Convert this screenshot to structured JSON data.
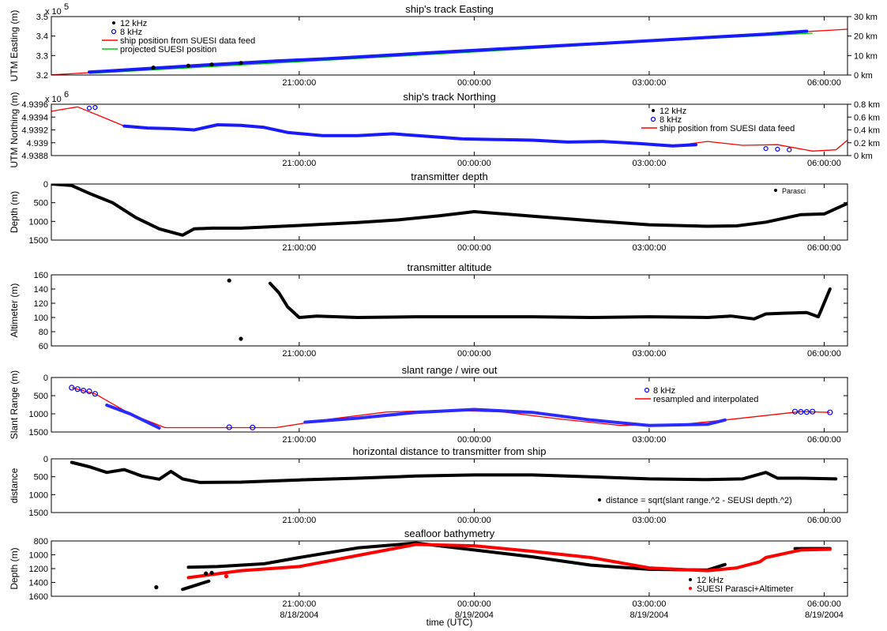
{
  "chart_data": [
    {
      "id": "easting",
      "type": "scatter",
      "title": "ship's track Easting",
      "ylabel": "UTM Easting (m)",
      "yexp": "x 10",
      "yexp_power": "5",
      "ylim": [
        3.2,
        3.5
      ],
      "yinvert": false,
      "yticks": [
        "3.2",
        "3.3",
        "3.4",
        "3.5"
      ],
      "yticks_values": [
        3.2,
        3.3,
        3.4,
        3.5
      ],
      "right_axis": {
        "ticks": [
          "0 km",
          "10 km",
          "20 km",
          "30 km"
        ],
        "values": [
          3.2,
          3.3,
          3.4,
          3.5
        ]
      },
      "xlim": [
        -4.25,
        9.4
      ],
      "xticks": [
        "21:00:00",
        "00:00:00",
        "03:00:00",
        "06:00:00"
      ],
      "xticks_values": [
        0,
        3,
        6,
        9
      ],
      "legend": {
        "placement": "top-left",
        "entries": [
          {
            "label": "12 kHz",
            "color": "#000000",
            "marker": "dot"
          },
          {
            "label": "8 kHz",
            "color": "#0000ff",
            "marker": "circle"
          },
          {
            "label": "ship position from SUESI data feed",
            "color": "#ff0000",
            "marker": "line"
          },
          {
            "label": "projected SUESI position",
            "color": "#00cc00",
            "marker": "line"
          }
        ]
      },
      "series": [
        {
          "kind": "line",
          "color": "#ff0000",
          "x": [
            -4.25,
            -2.0,
            0.0,
            3.0,
            6.0,
            9.4
          ],
          "y": [
            3.201,
            3.24,
            3.274,
            3.322,
            3.376,
            3.435
          ]
        },
        {
          "kind": "line",
          "color": "#00cc00",
          "x": [
            -3.6,
            0.0,
            3.0,
            6.0,
            8.8
          ],
          "y": [
            3.208,
            3.268,
            3.318,
            3.372,
            3.415
          ]
        },
        {
          "kind": "band",
          "color": "#1a1aff",
          "stroke": 4,
          "x": [
            -3.6,
            -2.4,
            -1.7,
            -0.4,
            0.5,
            2.4,
            3.0,
            4.6,
            5.3,
            8.0,
            8.7
          ],
          "y": [
            3.215,
            3.237,
            3.25,
            3.272,
            3.284,
            3.317,
            3.327,
            3.353,
            3.364,
            3.41,
            3.425
          ]
        },
        {
          "kind": "dots",
          "color": "#000000",
          "r": 2,
          "x": [
            -2.5,
            -1.9,
            -1.5,
            -1.0
          ],
          "y": [
            3.238,
            3.248,
            3.254,
            3.262
          ]
        }
      ]
    },
    {
      "id": "northing",
      "type": "scatter",
      "title": "ship's track Northing",
      "ylabel": "UTM Northing (m)",
      "yexp": "x 10",
      "yexp_power": "6",
      "ylim": [
        4.9388,
        4.9396
      ],
      "yinvert": false,
      "yticks": [
        "4.9388",
        "4.939",
        "4.9392",
        "4.9394",
        "4.9396"
      ],
      "yticks_values": [
        4.9388,
        4.939,
        4.9392,
        4.9394,
        4.9396
      ],
      "right_axis": {
        "ticks": [
          "0 km",
          "0.2 km",
          "0.4 km",
          "0.6 km",
          "0.8 km"
        ],
        "values": [
          4.9388,
          4.939,
          4.9392,
          4.9394,
          4.9396
        ]
      },
      "xlim": [
        -4.25,
        9.4
      ],
      "xticks": [
        "21:00:00",
        "00:00:00",
        "03:00:00",
        "06:00:00"
      ],
      "xticks_values": [
        0,
        3,
        6,
        9
      ],
      "legend": {
        "placement": "top-right",
        "entries": [
          {
            "label": "12 kHz",
            "color": "#000000",
            "marker": "dot"
          },
          {
            "label": "8 kHz",
            "color": "#0000ff",
            "marker": "circle"
          },
          {
            "label": "ship position from SUESI data feed",
            "color": "#ff0000",
            "marker": "line"
          }
        ]
      },
      "series": [
        {
          "kind": "line",
          "color": "#ff0000",
          "x": [
            -4.25,
            -3.8,
            -3.4,
            -3.0,
            -2.6,
            -2.2,
            -1.8,
            -1.4,
            -1.0,
            -0.6,
            -0.2,
            0.4,
            1.0,
            1.6,
            2.2,
            2.8,
            3.4,
            4.0,
            4.6,
            5.2,
            5.8,
            6.4,
            7.0,
            7.6,
            8.2,
            8.8,
            9.2,
            9.4
          ],
          "y": [
            4.93949,
            4.93956,
            4.93941,
            4.93926,
            4.93923,
            4.93922,
            4.9392,
            4.93928,
            4.93927,
            4.93924,
            4.93916,
            4.93911,
            4.93911,
            4.93914,
            4.9391,
            4.93906,
            4.93905,
            4.93904,
            4.93901,
            4.93902,
            4.93899,
            4.93895,
            4.93902,
            4.93896,
            4.93897,
            4.93887,
            4.93889,
            4.93904
          ]
        },
        {
          "kind": "band",
          "color": "#1a1aff",
          "stroke": 4,
          "x": [
            -3.0,
            -2.6,
            -2.2,
            -1.8,
            -1.4,
            -1.0,
            -0.6,
            -0.2,
            0.4,
            1.0,
            1.6,
            2.2,
            2.8,
            3.4,
            4.0,
            4.6,
            5.2,
            5.8,
            6.4,
            6.8
          ],
          "y": [
            4.93926,
            4.93923,
            4.93922,
            4.9392,
            4.93928,
            4.93927,
            4.93924,
            4.93916,
            4.93911,
            4.93911,
            4.93914,
            4.9391,
            4.93906,
            4.93905,
            4.93904,
            4.93901,
            4.93902,
            4.93899,
            4.93895,
            4.93897
          ]
        },
        {
          "kind": "dots",
          "color": "#0000ff",
          "r": 2.5,
          "x": [
            -3.6,
            -3.5,
            8.0,
            8.2,
            8.4
          ],
          "y": [
            4.93954,
            4.93955,
            4.93891,
            4.9389,
            4.93889
          ]
        }
      ]
    },
    {
      "id": "depth",
      "type": "scatter",
      "title": "transmitter depth",
      "ylabel": "Depth (m)",
      "ylim": [
        0,
        1500
      ],
      "yinvert": true,
      "yticks": [
        "0",
        "500",
        "1000",
        "1500"
      ],
      "yticks_values": [
        0,
        500,
        1000,
        1500
      ],
      "xlim": [
        -4.25,
        9.4
      ],
      "xticks": [
        "21:00:00",
        "00:00:00",
        "03:00:00",
        "06:00:00"
      ],
      "xticks_values": [
        0,
        3,
        6,
        9
      ],
      "legend": {
        "placement": "top-right",
        "entries": [
          {
            "label": "Parasci",
            "color": "#000000",
            "marker": "dot"
          }
        ]
      },
      "series": [
        {
          "kind": "band",
          "color": "#000000",
          "stroke": 4,
          "x": [
            -4.25,
            -3.9,
            -3.6,
            -3.2,
            -2.8,
            -2.4,
            -2.0,
            -1.8,
            -1.5,
            -1.0,
            0.0,
            1.0,
            1.7,
            2.4,
            3.0,
            4.0,
            5.0,
            6.0,
            7.0,
            7.5,
            8.0,
            8.6,
            9.0,
            9.4
          ],
          "y": [
            0,
            40,
            250,
            500,
            900,
            1200,
            1370,
            1200,
            1180,
            1180,
            1110,
            1030,
            960,
            850,
            740,
            860,
            980,
            1090,
            1130,
            1120,
            1020,
            820,
            800,
            520
          ]
        }
      ]
    },
    {
      "id": "altitude",
      "type": "scatter",
      "title": "transmitter altitude",
      "ylabel": "Altimeter (m)",
      "ylim": [
        60,
        160
      ],
      "yinvert": false,
      "yticks": [
        "60",
        "80",
        "100",
        "120",
        "140",
        "160"
      ],
      "yticks_values": [
        60,
        80,
        100,
        120,
        140,
        160
      ],
      "xlim": [
        -4.25,
        9.4
      ],
      "xticks": [
        "21:00:00",
        "00:00:00",
        "03:00:00",
        "06:00:00"
      ],
      "xticks_values": [
        0,
        3,
        6,
        9
      ],
      "legend": null,
      "series": [
        {
          "kind": "band",
          "color": "#000000",
          "stroke": 4,
          "x": [
            -0.5,
            -0.35,
            -0.2,
            0.0,
            0.3,
            1.0,
            2.0,
            3.0,
            4.0,
            5.0,
            6.0,
            7.0,
            7.4,
            7.8,
            8.0,
            8.3,
            8.7,
            8.9,
            9.1
          ],
          "y": [
            148,
            135,
            115,
            100,
            102,
            100,
            101,
            101,
            101,
            100,
            101,
            100,
            102,
            98,
            105,
            106,
            107,
            101,
            140
          ]
        },
        {
          "kind": "dots",
          "color": "#000000",
          "r": 2,
          "x": [
            -1.2,
            -1.0
          ],
          "y": [
            152,
            70
          ]
        }
      ]
    },
    {
      "id": "slant",
      "type": "scatter",
      "title": "slant range / wire out",
      "ylabel": "Slant Range (m)",
      "ylim": [
        0,
        1500
      ],
      "yinvert": true,
      "yticks": [
        "0",
        "500",
        "1000",
        "1500"
      ],
      "yticks_values": [
        0,
        500,
        1000,
        1500
      ],
      "xlim": [
        -4.25,
        9.4
      ],
      "xticks": [
        "21:00:00",
        "00:00:00",
        "03:00:00",
        "06:00:00"
      ],
      "xticks_values": [
        0,
        3,
        6,
        9
      ],
      "legend": {
        "placement": "top-right",
        "entries": [
          {
            "label": "8 kHz",
            "color": "#0000ff",
            "marker": "circle"
          },
          {
            "label": "resampled and interpolated",
            "color": "#ff0000",
            "marker": "line"
          }
        ]
      },
      "series": [
        {
          "kind": "line",
          "color": "#ff0000",
          "x": [
            -3.9,
            -3.5,
            -2.9,
            -2.3,
            -1.6,
            -0.4,
            0.5,
            1.5,
            2.5,
            3.5,
            4.5,
            5.5,
            6.5,
            7.3,
            8.6,
            9.1
          ],
          "y": [
            280,
            450,
            1000,
            1380,
            1380,
            1380,
            1150,
            950,
            900,
            950,
            1150,
            1320,
            1300,
            1170,
            940,
            960
          ]
        },
        {
          "kind": "band",
          "color": "#2b2bff",
          "stroke": 4,
          "x": [
            0.1,
            1.0,
            2.0,
            3.0,
            4.0,
            5.0,
            6.0,
            7.0,
            7.3
          ],
          "y": [
            1230,
            1120,
            960,
            880,
            960,
            1170,
            1320,
            1290,
            1170
          ]
        },
        {
          "kind": "band",
          "color": "#2b2bff",
          "stroke": 4,
          "x": [
            -3.3,
            -2.9,
            -2.4
          ],
          "y": [
            760,
            1000,
            1390
          ]
        },
        {
          "kind": "dots",
          "color": "#0000ff",
          "r": 3,
          "x": [
            -3.9,
            -3.8,
            -3.7,
            -3.6,
            -3.5,
            -1.2,
            -0.8,
            8.5,
            8.6,
            8.7,
            8.8,
            9.1
          ],
          "y": [
            280,
            320,
            360,
            380,
            450,
            1370,
            1375,
            940,
            945,
            950,
            940,
            960
          ]
        }
      ]
    },
    {
      "id": "horizontal",
      "type": "scatter",
      "title": "horizontal distance to transmitter from ship",
      "ylabel": "distance",
      "ylim": [
        0,
        1500
      ],
      "yinvert": true,
      "yticks": [
        "0",
        "500",
        "1000",
        "1500"
      ],
      "yticks_values": [
        0,
        500,
        1000,
        1500
      ],
      "xlim": [
        -4.25,
        9.4
      ],
      "xticks": [
        "21:00:00",
        "00:00:00",
        "03:00:00",
        "06:00:00"
      ],
      "xticks_values": [
        0,
        3,
        6,
        9
      ],
      "legend": {
        "placement": "bottom-right",
        "entries": [
          {
            "label": "distance = sqrt(slant range.^2 - SEUSI depth.^2)",
            "color": "#000000",
            "marker": "dot"
          }
        ]
      },
      "series": [
        {
          "kind": "band",
          "color": "#000000",
          "stroke": 4,
          "x": [
            -3.9,
            -3.6,
            -3.3,
            -3.0,
            -2.7,
            -2.4,
            -2.2,
            -2.0,
            -1.7,
            -1.0,
            0.0,
            1.0,
            2.0,
            3.0,
            4.0,
            5.0,
            6.0,
            7.0,
            7.6,
            8.0,
            8.2,
            8.6,
            9.2
          ],
          "y": [
            100,
            220,
            380,
            300,
            480,
            570,
            350,
            560,
            660,
            650,
            590,
            540,
            480,
            450,
            450,
            500,
            560,
            580,
            560,
            380,
            540,
            540,
            560
          ]
        }
      ]
    },
    {
      "id": "bathymetry",
      "type": "scatter",
      "title": "seafloor bathymetry",
      "ylabel": "Depth (m)",
      "xlabel": "time (UTC)",
      "ylim": [
        800,
        1600
      ],
      "yinvert": true,
      "yticks": [
        "800",
        "1000",
        "1200",
        "1400",
        "1600"
      ],
      "yticks_values": [
        800,
        1000,
        1200,
        1400,
        1600
      ],
      "xlim": [
        -4.25,
        9.4
      ],
      "xticks": [
        "21:00:00",
        "00:00:00",
        "03:00:00",
        "06:00:00"
      ],
      "xticks_values": [
        0,
        3,
        6,
        9
      ],
      "xticks_dates": [
        "8/18/2004",
        "8/19/2004",
        "8/19/2004",
        "8/19/2004"
      ],
      "legend": {
        "placement": "bottom-right",
        "entries": [
          {
            "label": "12 kHz",
            "color": "#000000",
            "marker": "dot"
          },
          {
            "label": "SUESI Parasci+Altimeter",
            "color": "#ff0000",
            "marker": "dot"
          }
        ]
      },
      "series": [
        {
          "kind": "band",
          "color": "#000000",
          "stroke": 4,
          "x": [
            -1.9,
            -1.4,
            -0.6,
            0.0,
            1.0,
            2.0,
            3.0,
            4.0,
            5.0,
            6.0,
            7.0,
            7.3
          ],
          "y": [
            1180,
            1170,
            1130,
            1040,
            900,
            830,
            930,
            1030,
            1150,
            1210,
            1220,
            1140
          ]
        },
        {
          "kind": "band",
          "color": "#000000",
          "stroke": 4,
          "x": [
            8.5,
            9.1
          ],
          "y": [
            910,
            910
          ]
        },
        {
          "kind": "band",
          "color": "#ff0000",
          "stroke": 4,
          "x": [
            -1.9,
            -1.0,
            0.0,
            1.0,
            2.0,
            3.0,
            4.0,
            5.0,
            6.0,
            7.0,
            7.5,
            7.9,
            8.0,
            8.6,
            9.1
          ],
          "y": [
            1330,
            1230,
            1170,
            1010,
            850,
            870,
            950,
            1040,
            1190,
            1230,
            1190,
            1100,
            1040,
            930,
            920
          ]
        },
        {
          "kind": "band",
          "color": "#000000",
          "stroke": 4,
          "x": [
            -2.0,
            -1.7,
            -1.55
          ],
          "y": [
            1500,
            1420,
            1380
          ]
        },
        {
          "kind": "dots",
          "color": "#000000",
          "r": 2,
          "x": [
            -2.45,
            -1.6,
            -1.5
          ],
          "y": [
            1470,
            1270,
            1260
          ]
        },
        {
          "kind": "dots",
          "color": "#ff0000",
          "r": 2,
          "x": [
            -1.25
          ],
          "y": [
            1310
          ]
        }
      ]
    }
  ]
}
